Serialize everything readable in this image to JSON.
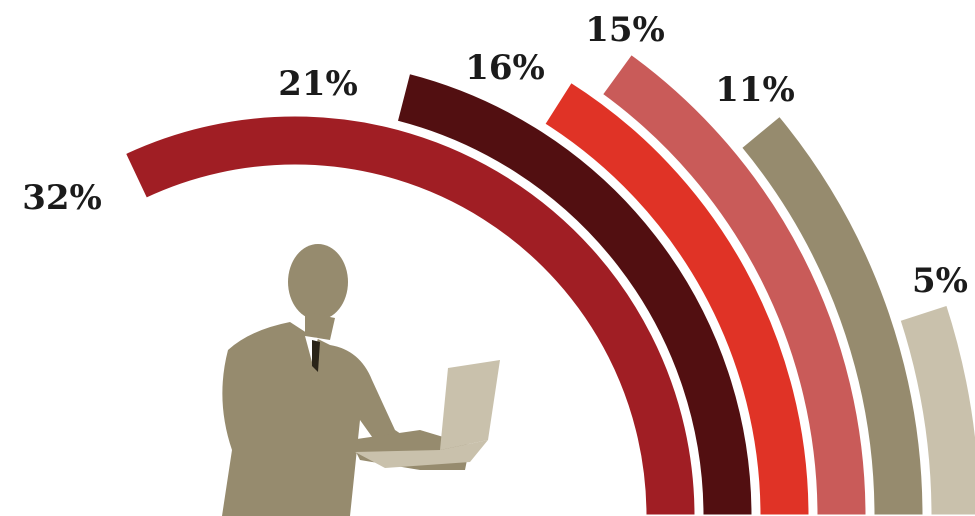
{
  "chart_data": {
    "type": "arc",
    "values": [
      32,
      21,
      16,
      15,
      11,
      5
    ],
    "value_labels": [
      "32%",
      "21%",
      "16%",
      "15%",
      "11%",
      "5%"
    ],
    "colors": [
      "#a01e24",
      "#520f11",
      "#e03326",
      "#c95b59",
      "#968b6e",
      "#c9c1ac"
    ]
  }
}
